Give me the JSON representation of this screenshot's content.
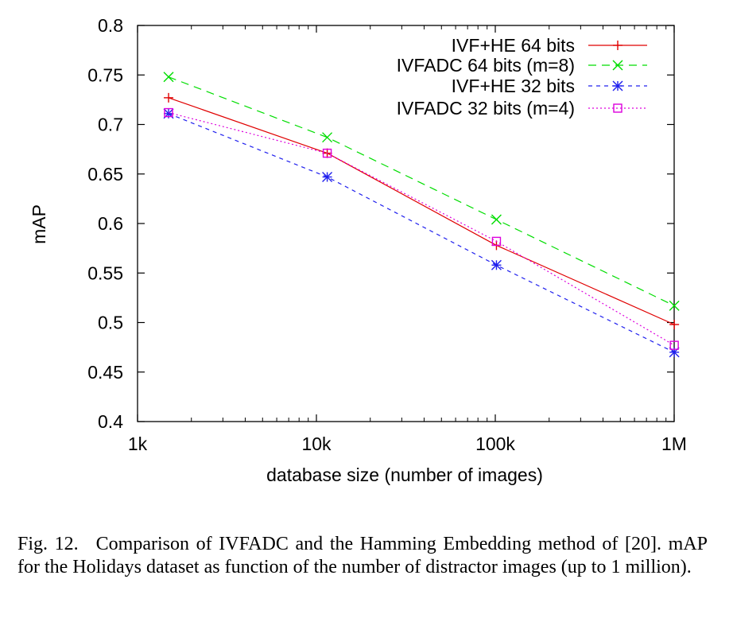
{
  "chart_data": {
    "type": "line",
    "xlabel": "database size (number of images)",
    "ylabel": "mAP",
    "xscale": "log",
    "xlim": [
      1000,
      1000000
    ],
    "ylim": [
      0.4,
      0.8
    ],
    "x_ticks": [
      1000,
      10000,
      100000,
      1000000
    ],
    "x_tick_labels": [
      "1k",
      "10k",
      "100k",
      "1M"
    ],
    "y_ticks": [
      0.4,
      0.45,
      0.5,
      0.55,
      0.6,
      0.65,
      0.7,
      0.75,
      0.8
    ],
    "y_tick_labels": [
      "0.4",
      "0.45",
      "0.5",
      "0.55",
      "0.6",
      "0.65",
      "0.7",
      "0.75",
      "0.8"
    ],
    "grid": false,
    "legend_position": "top-right",
    "series": [
      {
        "name": "IVF+HE 64 bits",
        "color": "#e00000",
        "dash": "solid",
        "marker": "plus",
        "x": [
          1491,
          11491,
          101491,
          1001491
        ],
        "y": [
          0.727,
          0.671,
          0.578,
          0.498
        ]
      },
      {
        "name": "IVFADC 64 bits (m=8)",
        "color": "#00dd00",
        "dash": "10,7",
        "marker": "x",
        "x": [
          1491,
          11491,
          101491,
          1001491
        ],
        "y": [
          0.748,
          0.687,
          0.604,
          0.517
        ]
      },
      {
        "name": "IVF+HE 32 bits",
        "color": "#2020ee",
        "dash": "5,5",
        "marker": "star",
        "x": [
          1491,
          11491,
          101491,
          1001491
        ],
        "y": [
          0.711,
          0.647,
          0.558,
          0.47
        ]
      },
      {
        "name": "IVFADC 32 bits (m=4)",
        "color": "#dd00dd",
        "dash": "2,3",
        "marker": "square",
        "x": [
          1491,
          11491,
          101491,
          1001491
        ],
        "y": [
          0.712,
          0.671,
          0.582,
          0.477
        ]
      }
    ]
  },
  "caption": {
    "label": "Fig. 12.",
    "text": "Comparison of IVFADC and the Hamming Embedding method of [20]. mAP for the Holidays dataset as function of the number of distractor images (up to 1 million)."
  }
}
